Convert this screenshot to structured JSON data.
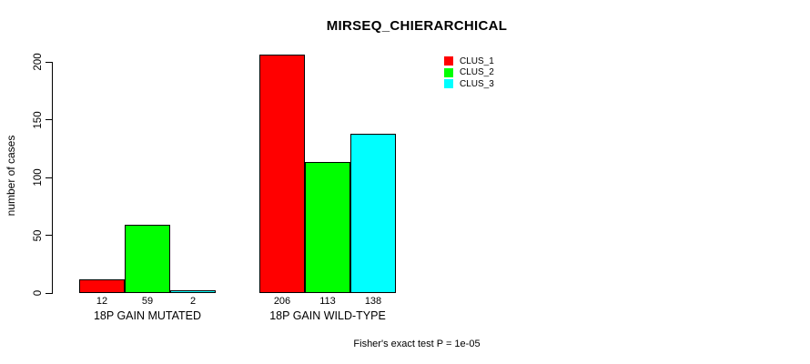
{
  "chart_data": {
    "type": "bar",
    "title": "MIRSEQ_CHIERARCHICAL",
    "xlabel": "",
    "ylabel": "number of cases",
    "ylim": [
      0,
      200
    ],
    "yticks": [
      0,
      50,
      100,
      150,
      200
    ],
    "categories": [
      "18P GAIN MUTATED",
      "18P GAIN WILD-TYPE"
    ],
    "series": [
      {
        "name": "CLUS_1",
        "color": "#ff0000",
        "values": [
          12,
          206
        ]
      },
      {
        "name": "CLUS_2",
        "color": "#00ff00",
        "values": [
          59,
          113
        ]
      },
      {
        "name": "CLUS_3",
        "color": "#00ffff",
        "values": [
          2,
          138
        ]
      }
    ],
    "bar_value_labels": [
      [
        "12",
        "59",
        "2"
      ],
      [
        "206",
        "113",
        "138"
      ]
    ],
    "legend_position": "top-right",
    "grid": false,
    "bar_border_color": "#000000",
    "background_color": "#ffffff"
  },
  "annotation": {
    "text": "Fisher's exact test P = 1e-05"
  }
}
